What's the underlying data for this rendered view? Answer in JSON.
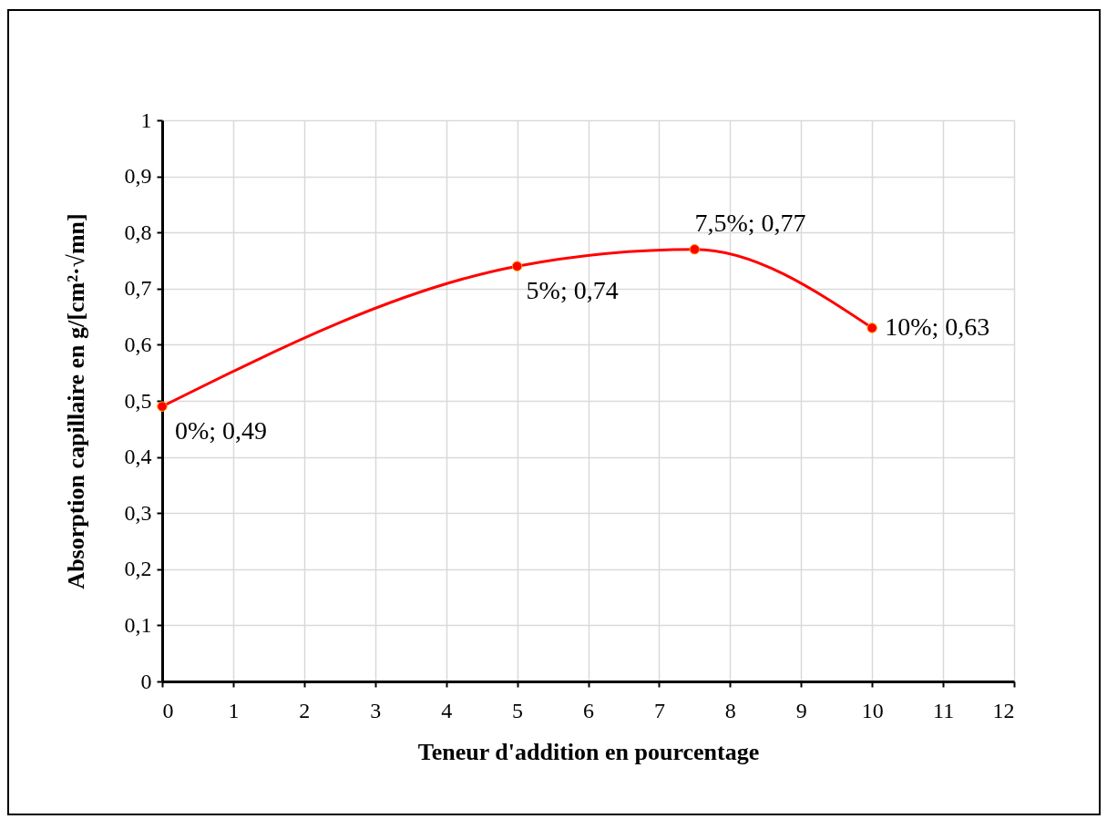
{
  "chart_data": {
    "type": "line",
    "xlabel": "Teneur d'addition en pourcentage",
    "ylabel": "Absorption capillaire en g/[cm²·√mn]",
    "x": [
      0,
      5,
      7.5,
      10
    ],
    "series": [
      {
        "color": "#ff0000",
        "values": [
          0.49,
          0.74,
          0.77,
          0.63
        ],
        "value_labels": [
          "0%; 0,49",
          "5%; 0,74",
          "7,5%; 0,77",
          "10%; 0,63"
        ]
      }
    ],
    "xlim": [
      0,
      12
    ],
    "xticks": [
      0,
      1,
      2,
      3,
      4,
      5,
      6,
      7,
      8,
      9,
      10,
      11,
      12
    ],
    "ylim": [
      0,
      1
    ],
    "yticks": [
      0,
      {
        "value": 0.1,
        "label": "0,1"
      },
      {
        "value": 0.2,
        "label": "0,2"
      },
      {
        "value": 0.3,
        "label": "0,3"
      },
      {
        "value": 0.4,
        "label": "0,4"
      },
      {
        "value": 0.5,
        "label": "0,5"
      },
      {
        "value": 0.6,
        "label": "0,6"
      },
      {
        "value": 0.7,
        "label": "0,7"
      },
      {
        "value": 0.8,
        "label": "0,8"
      },
      {
        "value": 0.9,
        "label": "0,9"
      },
      1
    ],
    "grid": true,
    "marker": "circle",
    "line_style": "solid"
  }
}
